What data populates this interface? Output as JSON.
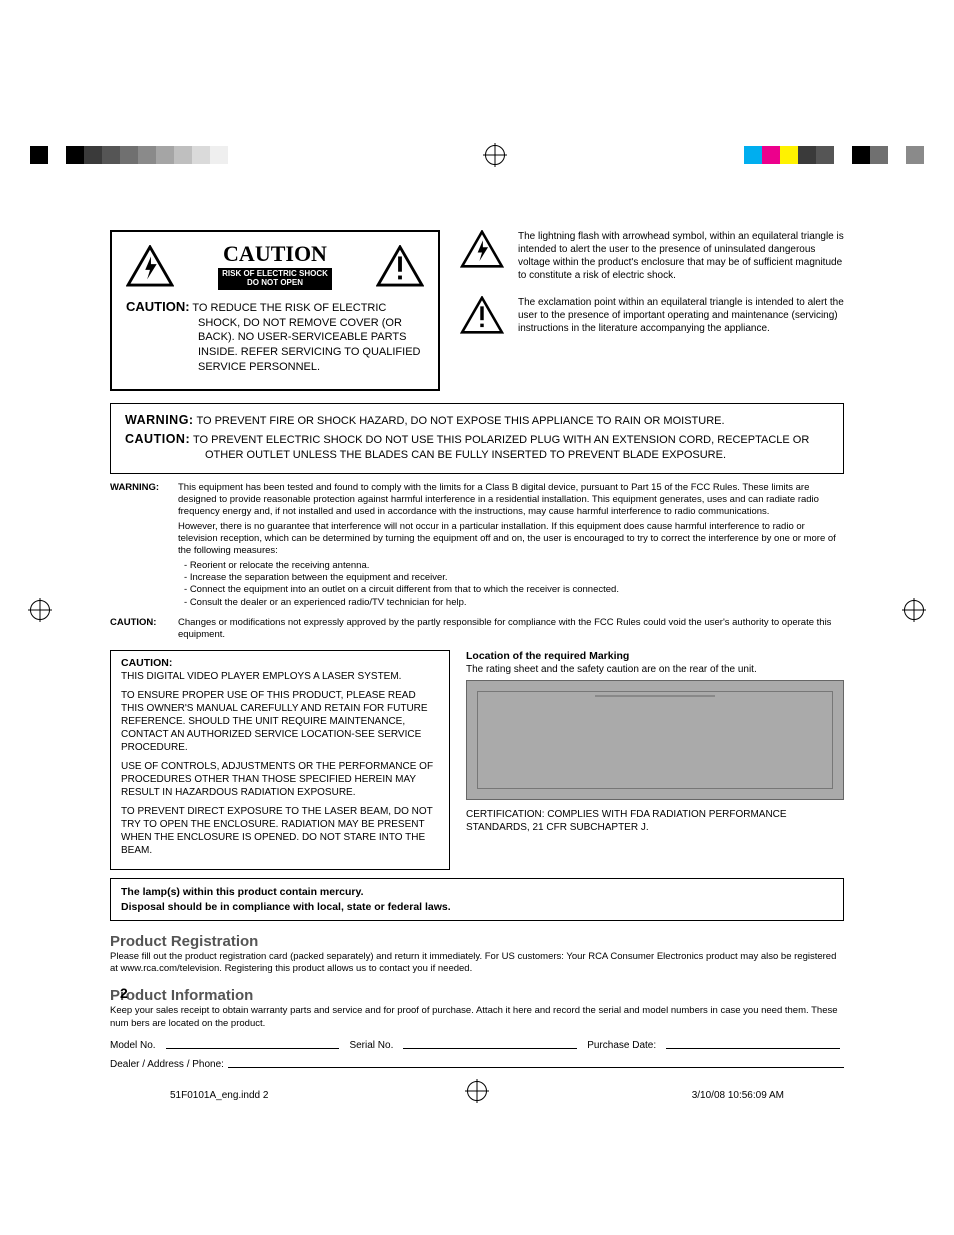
{
  "colorbar_left": [
    "#000000",
    "#ffffff",
    "#000000",
    "#3a3a3a",
    "#555555",
    "#707070",
    "#8a8a8a",
    "#a5a5a5",
    "#bfbfbf",
    "#dadada",
    "#efefef",
    "#ffffff"
  ],
  "colorbar_right": [
    "#00aeef",
    "#ec008c",
    "#fff200",
    "#3a3a3a",
    "#555555",
    "#ffffff",
    "#000000",
    "#707070",
    "#ffffff",
    "#8a8a8a"
  ],
  "caution_plate": {
    "title": "CAUTION",
    "line1": "RISK OF ELECTRIC SHOCK",
    "line2": "DO NOT OPEN"
  },
  "caution_body": {
    "lead": "CAUTION:",
    "text": "TO REDUCE THE RISK OF ELECTRIC SHOCK, DO NOT REMOVE COVER (OR BACK). NO USER-SERVICEABLE PARTS INSIDE. REFER SERVICING TO QUALIFIED SERVICE PERSONNEL."
  },
  "side_notes": [
    "The lightning flash with arrowhead symbol, within an equilateral triangle is intended to alert the user to the presence of uninsulated dangerous voltage within the product's enclosure that may be of sufficient magnitude to constitute a risk of electric shock.",
    "The exclamation point within an equilateral triangle is intended to alert the user to the presence of important operating and maintenance (servicing) instructions in the literature accompanying the appliance."
  ],
  "warn_box": [
    {
      "lead": "WARNING:",
      "text": "TO PREVENT FIRE OR SHOCK HAZARD, DO NOT EXPOSE THIS APPLIANCE TO RAIN OR MOISTURE."
    },
    {
      "lead": "CAUTION:",
      "text": "TO PREVENT ELECTRIC SHOCK DO NOT USE THIS POLARIZED PLUG WITH AN EXTENSION CORD, RECEPTACLE OR OTHER OUTLET UNLESS THE BLADES CAN BE FULLY INSERTED TO PREVENT BLADE EXPOSURE."
    }
  ],
  "fcc": {
    "warning_label": "WARNING:",
    "warning_p1": "This equipment has been tested and found to comply with the limits for a Class B digital device, pursuant to Part 15 of the FCC Rules. These limits are designed to provide reasonable protection against harmful interference in a residential installation. This equipment generates, uses and can radiate radio frequency energy and, if not installed and used in accordance with the instructions, may cause harmful interference to radio communications.",
    "warning_p2": "However, there is no guarantee that interference will not occur in a particular installation. If this equipment does cause harmful interference to radio or television reception, which can be determined by turning the equipment off and on, the user is encouraged to try to correct the interference by one or more of the following measures:",
    "bullets": [
      "Reorient or relocate the receiving antenna.",
      "Increase the separation between the equipment and receiver.",
      "Connect the equipment into an outlet on a circuit different from that to which the receiver is connected.",
      "Consult the dealer or an experienced radio/TV technician for help."
    ],
    "caution_label": "CAUTION:",
    "caution_text": "Changes or modifications not expressly approved by the partly responsible for compliance with the FCC Rules could void the user's authority to operate this equipment."
  },
  "laser": {
    "head": "CAUTION:",
    "p1": "THIS DIGITAL VIDEO PLAYER EMPLOYS A LASER SYSTEM.",
    "p2": "TO ENSURE PROPER USE OF THIS PRODUCT, PLEASE READ THIS OWNER'S MANUAL CAREFULLY AND RETAIN FOR FUTURE REFERENCE. SHOULD THE UNIT REQUIRE MAINTENANCE, CONTACT AN AUTHORIZED SERVICE LOCATION-SEE SERVICE PROCEDURE.",
    "p3": "USE OF CONTROLS, ADJUSTMENTS OR THE PERFORMANCE OF PROCEDURES OTHER THAN THOSE SPECIFIED HEREIN MAY RESULT IN HAZARDOUS RADIATION EXPOSURE.",
    "p4": "TO PREVENT DIRECT EXPOSURE TO THE LASER BEAM, DO NOT TRY TO OPEN THE ENCLOSURE. RADIATION MAY BE PRESENT WHEN THE ENCLOSURE IS OPENED.  DO NOT STARE INTO THE BEAM."
  },
  "marking": {
    "head": "Location of the required Marking",
    "sub": "The rating sheet and the safety caution are on the rear of the unit.",
    "cert": "CERTIFICATION: COMPLIES WITH FDA RADIATION PERFORMANCE STANDARDS, 21 CFR SUBCHAPTER J."
  },
  "mercury": {
    "l1": "The lamp(s) within this product contain mercury.",
    "l2": "Disposal should be in compliance with local, state or federal laws."
  },
  "reg_section": {
    "head": "Product Registration",
    "body": "Please fill out the product registration card (packed separately) and return it immediately. For US customers: Your RCA Consumer Electronics product may also be registered at www.rca.com/television. Registering this product allows us to contact you if needed."
  },
  "info_section": {
    "head": "Product Information",
    "body": "Keep your sales receipt to obtain warranty parts and service and for proof of purchase. Attach it here and record the serial and model numbers in case you need them. These num bers are located on the product."
  },
  "fields": {
    "model": "Model No.",
    "serial": "Serial No.",
    "purchase": "Purchase Date:",
    "dealer": "Dealer / Address / Phone:"
  },
  "page_number": "2",
  "footer": {
    "file": "51F0101A_eng.indd   2",
    "stamp": "3/10/08   10:56:09 AM"
  }
}
